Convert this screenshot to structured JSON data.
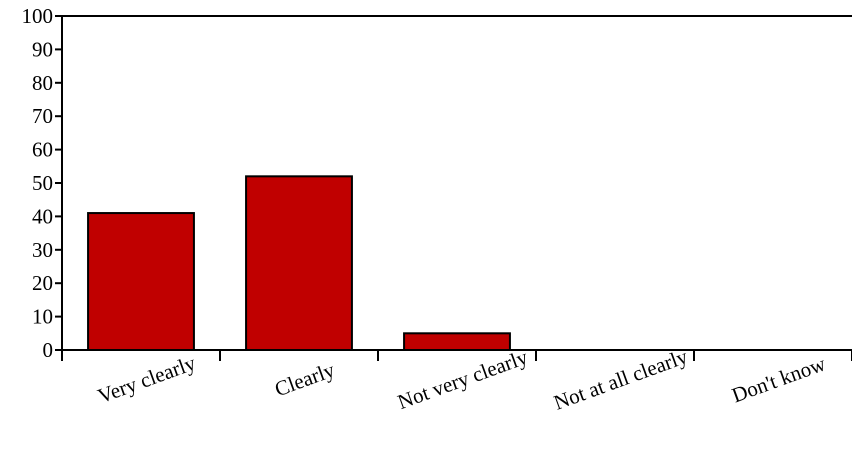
{
  "chart_data": {
    "type": "bar",
    "categories": [
      "Very clearly",
      "Clearly",
      "Not very clearly",
      "Not at all clearly",
      "Don't know"
    ],
    "values": [
      41,
      52,
      5,
      0,
      0
    ],
    "ylim": [
      0,
      100
    ],
    "yticks": [
      0,
      10,
      20,
      30,
      40,
      50,
      60,
      70,
      80,
      90,
      100
    ],
    "title": "",
    "xlabel": "",
    "ylabel": "",
    "grid": false,
    "colors": {
      "bar": "#c00000",
      "axis": "#000000"
    }
  }
}
